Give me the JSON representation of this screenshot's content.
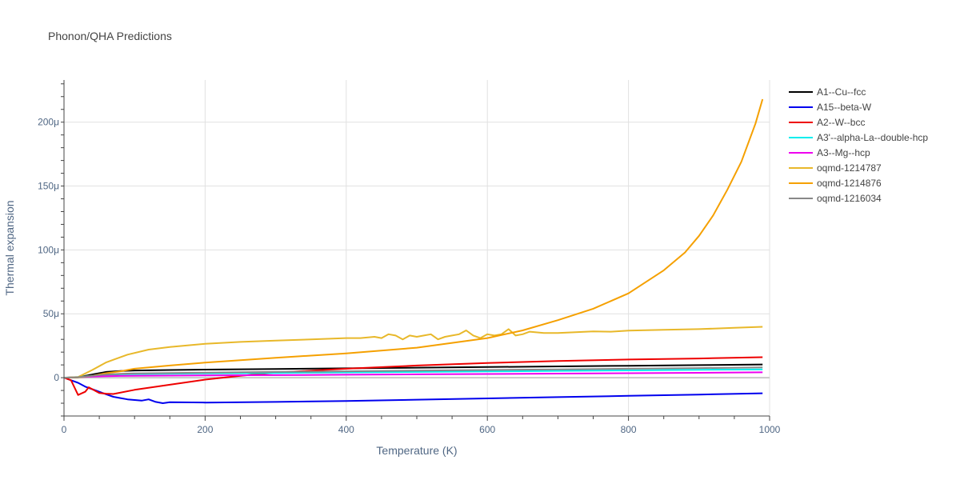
{
  "chart_data": {
    "type": "line",
    "title": "Phonon/QHA Predictions",
    "xlabel": "Temperature (K)",
    "ylabel": "Thermal expansion",
    "xlim": [
      0,
      1000
    ],
    "ylim": [
      -3e-05,
      0.000233
    ],
    "x_ticks": [
      0,
      200,
      400,
      600,
      800,
      1000
    ],
    "x_tick_labels": [
      "0",
      "200",
      "400",
      "600",
      "800",
      "1000"
    ],
    "y_ticks": [
      0,
      5e-05,
      0.0001,
      0.00015,
      0.0002
    ],
    "y_tick_labels": [
      "0",
      "50μ",
      "100μ",
      "150μ",
      "200μ"
    ],
    "grid": true,
    "legend_position": "right",
    "series": [
      {
        "name": "A1--Cu--fcc",
        "color": "#000000",
        "x": [
          0,
          20,
          40,
          60,
          80,
          100,
          150,
          200,
          300,
          400,
          500,
          600,
          700,
          800,
          900,
          990
        ],
        "y": [
          0,
          3e-07,
          2.5e-06,
          4.5e-06,
          5.2e-06,
          5.6e-06,
          6e-06,
          6.3e-06,
          6.8e-06,
          7.3e-06,
          7.8e-06,
          8.3e-06,
          8.8e-06,
          9.3e-06,
          9.8e-06,
          1.03e-05
        ]
      },
      {
        "name": "A15--beta-W",
        "color": "#0000ee",
        "x": [
          0,
          10,
          20,
          30,
          40,
          50,
          60,
          70,
          80,
          90,
          100,
          110,
          120,
          130,
          140,
          150,
          200,
          300,
          400,
          500,
          600,
          700,
          800,
          900,
          990
        ],
        "y": [
          0,
          -2e-06,
          -4e-06,
          -7e-06,
          -9e-06,
          -1.1e-05,
          -1.3e-05,
          -1.5e-05,
          -1.6e-05,
          -1.7e-05,
          -1.75e-05,
          -1.8e-05,
          -1.7e-05,
          -1.9e-05,
          -2e-05,
          -1.92e-05,
          -1.95e-05,
          -1.9e-05,
          -1.82e-05,
          -1.72e-05,
          -1.62e-05,
          -1.52e-05,
          -1.42e-05,
          -1.32e-05,
          -1.22e-05
        ]
      },
      {
        "name": "A2--W--bcc",
        "color": "#ee0000",
        "x": [
          0,
          10,
          20,
          30,
          35,
          40,
          50,
          60,
          70,
          100,
          150,
          200,
          250,
          300,
          400,
          500,
          600,
          700,
          800,
          900,
          990
        ],
        "y": [
          0,
          -2e-06,
          -1.35e-05,
          -1.1e-05,
          -7.5e-06,
          -9e-06,
          -1.2e-05,
          -1.25e-05,
          -1.28e-05,
          -9.5e-06,
          -5.5e-06,
          -1.5e-06,
          1.5e-06,
          4e-06,
          7e-06,
          9.5e-06,
          1.15e-05,
          1.3e-05,
          1.42e-05,
          1.5e-05,
          1.6e-05
        ]
      },
      {
        "name": "A3'--alpha-La--double-hcp",
        "color": "#00eeee",
        "x": [
          0,
          20,
          40,
          60,
          80,
          100,
          150,
          200,
          300,
          400,
          500,
          600,
          700,
          800,
          900,
          990
        ],
        "y": [
          0,
          5e-07,
          1.5e-06,
          2.2e-06,
          2.6e-06,
          2.8e-06,
          3.1e-06,
          3.3e-06,
          3.7e-06,
          4.1e-06,
          4.5e-06,
          4.9e-06,
          5.3e-06,
          5.7e-06,
          6.1e-06,
          6.5e-06
        ]
      },
      {
        "name": "A3--Mg--hcp",
        "color": "#ee00ee",
        "x": [
          0,
          20,
          40,
          60,
          80,
          100,
          150,
          200,
          300,
          400,
          500,
          600,
          700,
          800,
          900,
          990
        ],
        "y": [
          0,
          4e-07,
          9e-07,
          1.2e-06,
          1.4e-06,
          1.5e-06,
          1.6e-06,
          1.8e-06,
          2e-06,
          2.3e-06,
          2.6e-06,
          2.9e-06,
          3.2e-06,
          3.5e-06,
          3.8e-06,
          4.2e-06
        ]
      },
      {
        "name": "oqmd-1214787",
        "color": "#e8b82a",
        "x": [
          0,
          20,
          40,
          60,
          70,
          90,
          120,
          150,
          200,
          250,
          300,
          350,
          400,
          420,
          440,
          450,
          460,
          470,
          480,
          490,
          500,
          510,
          520,
          530,
          540,
          550,
          560,
          570,
          580,
          590,
          600,
          610,
          620,
          630,
          640,
          650,
          660,
          680,
          700,
          750,
          775,
          800,
          850,
          900,
          950,
          990
        ],
        "y": [
          0,
          5e-07,
          6e-06,
          1.2e-05,
          1.4e-05,
          1.8e-05,
          2.2e-05,
          2.4e-05,
          2.65e-05,
          2.8e-05,
          2.9e-05,
          3e-05,
          3.1e-05,
          3.1e-05,
          3.2e-05,
          3.1e-05,
          3.4e-05,
          3.3e-05,
          3e-05,
          3.3e-05,
          3.2e-05,
          3.3e-05,
          3.4e-05,
          3e-05,
          3.2e-05,
          3.3e-05,
          3.4e-05,
          3.7e-05,
          3.3e-05,
          3.1e-05,
          3.4e-05,
          3.3e-05,
          3.4e-05,
          3.8e-05,
          3.3e-05,
          3.4e-05,
          3.6e-05,
          3.5e-05,
          3.5e-05,
          3.62e-05,
          3.6e-05,
          3.68e-05,
          3.75e-05,
          3.8e-05,
          3.9e-05,
          3.98e-05
        ]
      },
      {
        "name": "oqmd-1214876",
        "color": "#f5a000",
        "x": [
          0,
          20,
          40,
          60,
          80,
          100,
          150,
          200,
          300,
          400,
          500,
          600,
          650,
          700,
          750,
          800,
          850,
          880,
          900,
          920,
          940,
          960,
          980,
          990
        ],
        "y": [
          0,
          2e-07,
          1.5e-06,
          3.5e-06,
          5e-06,
          7e-06,
          9.5e-06,
          1.18e-05,
          1.55e-05,
          1.9e-05,
          2.35e-05,
          3.1e-05,
          3.7e-05,
          4.5e-05,
          5.4e-05,
          6.6e-05,
          8.4e-05,
          9.8e-05,
          0.000111,
          0.000127,
          0.000147,
          0.000169,
          0.000199,
          0.000218
        ]
      },
      {
        "name": "oqmd-1216034",
        "color": "#888888",
        "x": [
          0,
          20,
          40,
          60,
          80,
          100,
          150,
          200,
          300,
          400,
          500,
          600,
          700,
          800,
          900,
          990
        ],
        "y": [
          0,
          4e-07,
          1.5e-06,
          2.5e-06,
          3e-06,
          3.3e-06,
          3.7e-06,
          4e-06,
          4.5e-06,
          5e-06,
          5.5e-06,
          6e-06,
          6.5e-06,
          7e-06,
          7.5e-06,
          8e-06
        ]
      }
    ]
  }
}
